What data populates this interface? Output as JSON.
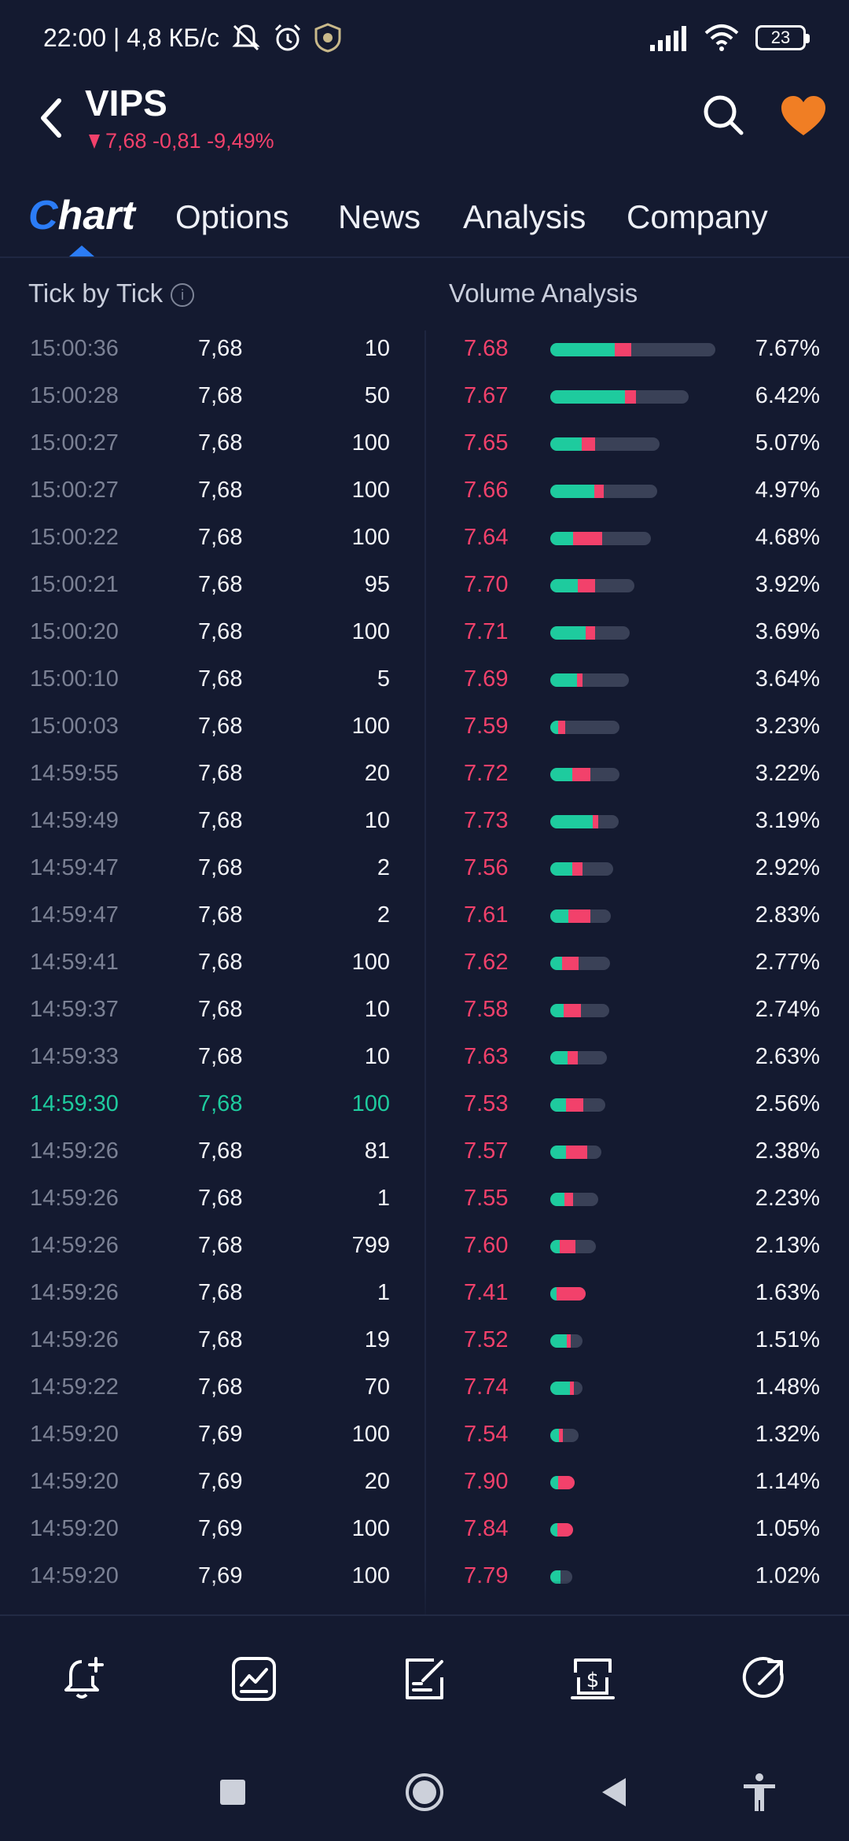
{
  "status_bar": {
    "time_speed": "22:00 | 4,8 КБ/с",
    "battery": "23"
  },
  "header": {
    "ticker": "VIPS",
    "quote": "7,68 -0,81 -9,49%"
  },
  "tabs": [
    "Options",
    "News",
    "Analysis",
    "Company"
  ],
  "chart_tab": {
    "c": "C",
    "rest": "hart"
  },
  "sections": {
    "tick": "Tick by Tick",
    "volume": "Volume Analysis",
    "info": "i"
  },
  "ticks": [
    {
      "time": "15:00:36",
      "price": "7,68",
      "vol": "10",
      "dir": "flat"
    },
    {
      "time": "15:00:28",
      "price": "7,68",
      "vol": "50",
      "dir": "flat"
    },
    {
      "time": "15:00:27",
      "price": "7,68",
      "vol": "100",
      "dir": "flat"
    },
    {
      "time": "15:00:27",
      "price": "7,68",
      "vol": "100",
      "dir": "flat"
    },
    {
      "time": "15:00:22",
      "price": "7,68",
      "vol": "100",
      "dir": "flat"
    },
    {
      "time": "15:00:21",
      "price": "7,68",
      "vol": "95",
      "dir": "flat"
    },
    {
      "time": "15:00:20",
      "price": "7,68",
      "vol": "100",
      "dir": "flat"
    },
    {
      "time": "15:00:10",
      "price": "7,68",
      "vol": "5",
      "dir": "flat"
    },
    {
      "time": "15:00:03",
      "price": "7,68",
      "vol": "100",
      "dir": "flat"
    },
    {
      "time": "14:59:55",
      "price": "7,68",
      "vol": "20",
      "dir": "flat"
    },
    {
      "time": "14:59:49",
      "price": "7,68",
      "vol": "10",
      "dir": "flat"
    },
    {
      "time": "14:59:47",
      "price": "7,68",
      "vol": "2",
      "dir": "flat"
    },
    {
      "time": "14:59:47",
      "price": "7,68",
      "vol": "2",
      "dir": "flat"
    },
    {
      "time": "14:59:41",
      "price": "7,68",
      "vol": "100",
      "dir": "flat"
    },
    {
      "time": "14:59:37",
      "price": "7,68",
      "vol": "10",
      "dir": "flat"
    },
    {
      "time": "14:59:33",
      "price": "7,68",
      "vol": "10",
      "dir": "flat"
    },
    {
      "time": "14:59:30",
      "price": "7,68",
      "vol": "100",
      "dir": "up"
    },
    {
      "time": "14:59:26",
      "price": "7,68",
      "vol": "81",
      "dir": "flat"
    },
    {
      "time": "14:59:26",
      "price": "7,68",
      "vol": "1",
      "dir": "flat"
    },
    {
      "time": "14:59:26",
      "price": "7,68",
      "vol": "799",
      "dir": "flat"
    },
    {
      "time": "14:59:26",
      "price": "7,68",
      "vol": "1",
      "dir": "flat"
    },
    {
      "time": "14:59:26",
      "price": "7,68",
      "vol": "19",
      "dir": "flat"
    },
    {
      "time": "14:59:22",
      "price": "7,68",
      "vol": "70",
      "dir": "flat"
    },
    {
      "time": "14:59:20",
      "price": "7,69",
      "vol": "100",
      "dir": "flat"
    },
    {
      "time": "14:59:20",
      "price": "7,69",
      "vol": "20",
      "dir": "flat"
    },
    {
      "time": "14:59:20",
      "price": "7,69",
      "vol": "100",
      "dir": "flat"
    },
    {
      "time": "14:59:20",
      "price": "7,69",
      "vol": "100",
      "dir": "flat"
    }
  ],
  "volume": [
    {
      "price": "7.68",
      "pct": "7.67%",
      "buy": 0.39,
      "sell": 0.1
    },
    {
      "price": "7.67",
      "pct": "6.42%",
      "buy": 0.54,
      "sell": 0.08
    },
    {
      "price": "7.65",
      "pct": "5.07%",
      "buy": 0.29,
      "sell": 0.12
    },
    {
      "price": "7.66",
      "pct": "4.97%",
      "buy": 0.41,
      "sell": 0.09
    },
    {
      "price": "7.64",
      "pct": "4.68%",
      "buy": 0.23,
      "sell": 0.29
    },
    {
      "price": "7.70",
      "pct": "3.92%",
      "buy": 0.33,
      "sell": 0.21
    },
    {
      "price": "7.71",
      "pct": "3.69%",
      "buy": 0.45,
      "sell": 0.12
    },
    {
      "price": "7.69",
      "pct": "3.64%",
      "buy": 0.34,
      "sell": 0.07
    },
    {
      "price": "7.59",
      "pct": "3.23%",
      "buy": 0.11,
      "sell": 0.1
    },
    {
      "price": "7.72",
      "pct": "3.22%",
      "buy": 0.32,
      "sell": 0.26
    },
    {
      "price": "7.73",
      "pct": "3.19%",
      "buy": 0.62,
      "sell": 0.08
    },
    {
      "price": "7.56",
      "pct": "2.92%",
      "buy": 0.35,
      "sell": 0.16
    },
    {
      "price": "7.61",
      "pct": "2.83%",
      "buy": 0.3,
      "sell": 0.37
    },
    {
      "price": "7.62",
      "pct": "2.77%",
      "buy": 0.2,
      "sell": 0.28
    },
    {
      "price": "7.58",
      "pct": "2.74%",
      "buy": 0.22,
      "sell": 0.29
    },
    {
      "price": "7.63",
      "pct": "2.63%",
      "buy": 0.3,
      "sell": 0.18
    },
    {
      "price": "7.53",
      "pct": "2.56%",
      "buy": 0.29,
      "sell": 0.31
    },
    {
      "price": "7.57",
      "pct": "2.38%",
      "buy": 0.3,
      "sell": 0.41
    },
    {
      "price": "7.55",
      "pct": "2.23%",
      "buy": 0.29,
      "sell": 0.18
    },
    {
      "price": "7.60",
      "pct": "2.13%",
      "buy": 0.21,
      "sell": 0.34
    },
    {
      "price": "7.41",
      "pct": "1.63%",
      "buy": 0.15,
      "sell": 0.85
    },
    {
      "price": "7.52",
      "pct": "1.51%",
      "buy": 0.52,
      "sell": 0.12
    },
    {
      "price": "7.74",
      "pct": "1.48%",
      "buy": 0.6,
      "sell": 0.11
    },
    {
      "price": "7.54",
      "pct": "1.32%",
      "buy": 0.3,
      "sell": 0.12
    },
    {
      "price": "7.90",
      "pct": "1.14%",
      "buy": 0.32,
      "sell": 0.68
    },
    {
      "price": "7.84",
      "pct": "1.05%",
      "buy": 0.3,
      "sell": 0.7
    },
    {
      "price": "7.79",
      "pct": "1.02%",
      "buy": 0.45,
      "sell": 0.0
    }
  ],
  "toolbar": [
    "bell-plus-icon",
    "chart-icon",
    "edit-note-icon",
    "trade-dollar-icon",
    "share-icon"
  ],
  "colors": {
    "up": "#1ecb9e",
    "down": "#f2416b",
    "accent": "#2b7cf6",
    "heart": "#f07e24",
    "bg": "#141a30"
  }
}
